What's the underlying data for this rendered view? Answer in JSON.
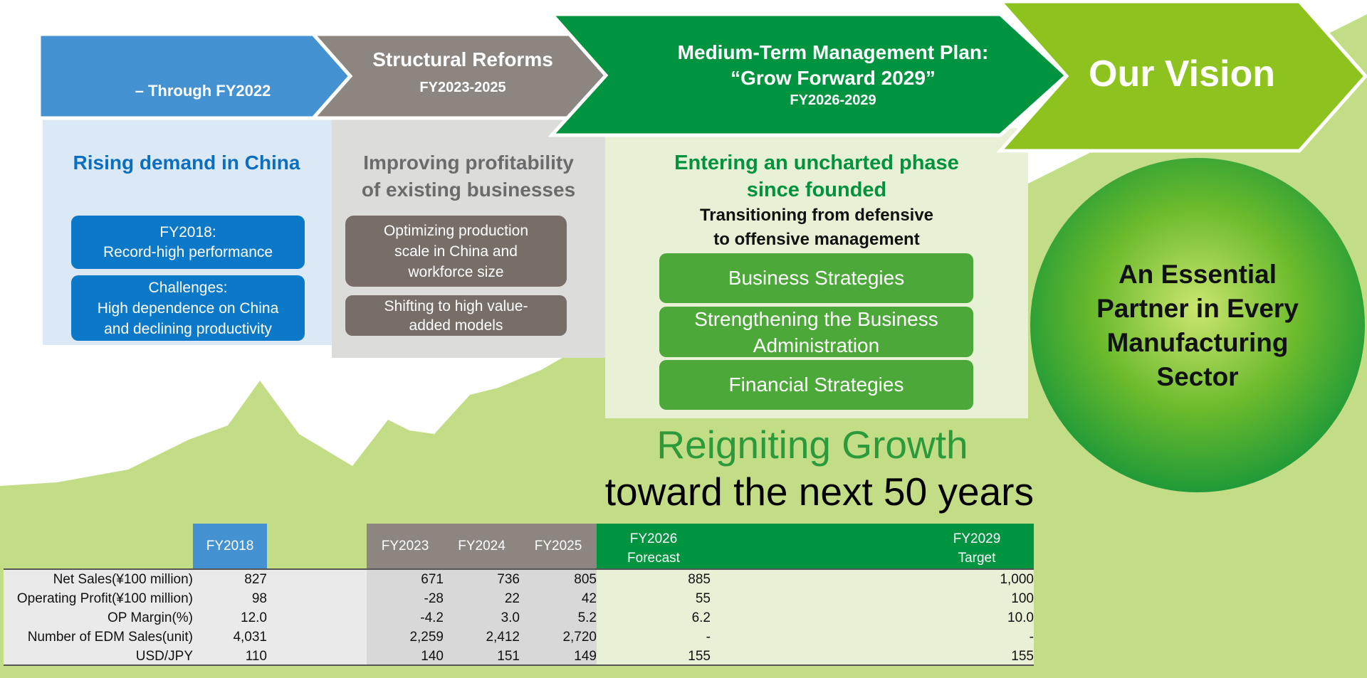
{
  "arrows": {
    "phase1": {
      "label": "– Through FY2022"
    },
    "phase2": {
      "title": "Structural Reforms",
      "years": "FY2023-2025"
    },
    "phase3": {
      "title_line1": "Medium-Term Management Plan:",
      "title_line2": "“Grow Forward 2029”",
      "years": "FY2026-2029"
    },
    "vision": {
      "label": "Our Vision"
    }
  },
  "panel1": {
    "heading": "Rising demand in China",
    "box1": {
      "line1": "FY2018:",
      "line2": "Record-high performance"
    },
    "box2": {
      "line1": "Challenges:",
      "line2": "High dependence on China",
      "line3": "and declining productivity"
    }
  },
  "panel2": {
    "heading_line1": "Improving profitability",
    "heading_line2": "of existing businesses",
    "box1": {
      "line1": "Optimizing production",
      "line2": "scale in China and",
      "line3": "workforce size"
    },
    "box2": {
      "line1": "Shifting to high value-",
      "line2": "added models"
    }
  },
  "panel3": {
    "heading_line1": "Entering an uncharted phase",
    "heading_line2": "since founded",
    "sub_line1": "Transitioning from defensive",
    "sub_line2": "to offensive management",
    "box1": "Business Strategies",
    "box2_line1": "Strengthening the Business",
    "box2_line2": "Administration",
    "box3": "Financial Strategies"
  },
  "vision_circle": {
    "line1": "An Essential",
    "line2": "Partner in Every",
    "line3": "Manufacturing",
    "line4": "Sector"
  },
  "tagline": {
    "line1": "Reigniting Growth",
    "line2": "toward the next 50 years"
  },
  "table": {
    "headers": {
      "fy2018": "FY2018",
      "fy2023": "FY2023",
      "fy2024": "FY2024",
      "fy2025": "FY2025",
      "fy2026_line1": "FY2026",
      "fy2026_line2": "Forecast",
      "fy2029_line1": "FY2029",
      "fy2029_line2": "Target"
    },
    "rows": [
      {
        "label": "Net Sales(¥100 million)",
        "fy2018": "827",
        "fy2023": "671",
        "fy2024": "736",
        "fy2025": "805",
        "fy2026": "885",
        "fy2029": "1,000"
      },
      {
        "label": "Operating Profit(¥100 million)",
        "fy2018": "98",
        "fy2023": "-28",
        "fy2024": "22",
        "fy2025": "42",
        "fy2026": "55",
        "fy2029": "100"
      },
      {
        "label": "OP Margin(%)",
        "fy2018": "12.0",
        "fy2023": "-4.2",
        "fy2024": "3.0",
        "fy2025": "5.2",
        "fy2026": "6.2",
        "fy2029": "10.0"
      },
      {
        "label": "Number of EDM Sales(unit)",
        "fy2018": "4,031",
        "fy2023": "2,259",
        "fy2024": "2,412",
        "fy2025": "2,720",
        "fy2026": "-",
        "fy2029": "-"
      },
      {
        "label": "USD/JPY",
        "fy2018": "110",
        "fy2023": "140",
        "fy2024": "151",
        "fy2025": "149",
        "fy2026": "155",
        "fy2029": "155"
      }
    ]
  },
  "colors": {
    "blue": "#4592d3",
    "blue_dark": "#0b78c8",
    "gray": "#8c8580",
    "gray_dark": "#786e68",
    "green": "#009440",
    "green_light": "#8dc21f",
    "green_box": "#4ca838",
    "terrain": "#c3dc86"
  }
}
